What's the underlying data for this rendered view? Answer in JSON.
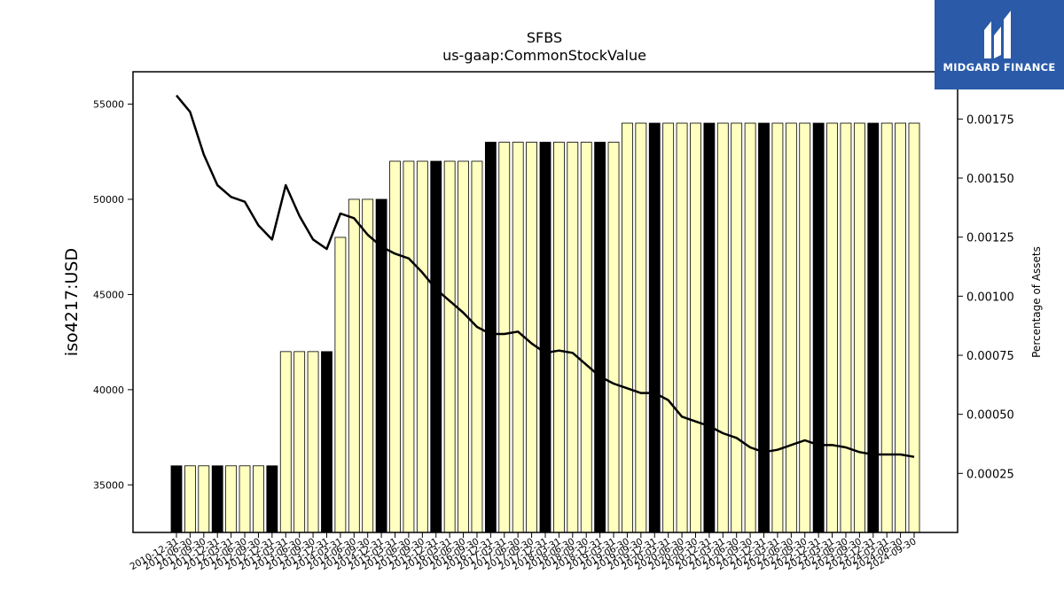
{
  "chart_data": {
    "type": "bar",
    "title": "SFBS",
    "subtitle": "us-gaap:CommonStockValue",
    "ylabel": "iso4217:USD",
    "y2label": "Percentage of Assets",
    "ylim": [
      32500,
      56700
    ],
    "y2lim": [
      0.0,
      0.00195
    ],
    "yticks": [
      35000,
      40000,
      45000,
      50000,
      55000
    ],
    "y2ticks": [
      "0.00025",
      "0.00050",
      "0.00075",
      "0.00100",
      "0.00125",
      "0.00150",
      "0.00175"
    ],
    "categories": [
      "2010-12-31",
      "2011-06-30",
      "2011-09-30",
      "2011-12-31",
      "2012-03-31",
      "2012-06-30",
      "2012-09-30",
      "2012-12-31",
      "2013-03-31",
      "2013-06-30",
      "2013-09-30",
      "2013-12-31",
      "2014-03-31",
      "2014-06-30",
      "2014-09-30",
      "2014-12-31",
      "2015-03-31",
      "2015-06-30",
      "2015-09-30",
      "2015-12-31",
      "2016-03-31",
      "2016-06-30",
      "2016-09-30",
      "2016-12-31",
      "2017-03-31",
      "2017-06-30",
      "2017-09-30",
      "2017-12-31",
      "2018-03-31",
      "2018-06-30",
      "2018-09-30",
      "2018-12-31",
      "2019-03-31",
      "2019-06-30",
      "2019-09-30",
      "2019-12-31",
      "2020-03-31",
      "2020-06-30",
      "2020-09-30",
      "2020-12-31",
      "2021-03-31",
      "2021-06-30",
      "2021-09-30",
      "2021-12-31",
      "2022-03-31",
      "2022-06-30",
      "2022-09-30",
      "2022-12-31",
      "2023-03-31",
      "2023-06-30",
      "2023-09-30",
      "2023-12-31",
      "2024-03-31",
      "2024-06-30",
      "2024-09-30"
    ],
    "values": [
      36000,
      36000,
      36000,
      36000,
      36000,
      36000,
      36000,
      36000,
      42000,
      42000,
      42000,
      42000,
      48000,
      50000,
      50000,
      50000,
      52000,
      52000,
      52000,
      52000,
      52000,
      52000,
      52000,
      53000,
      53000,
      53000,
      53000,
      53000,
      53000,
      53000,
      53000,
      53000,
      53000,
      54000,
      54000,
      54000,
      54000,
      54000,
      54000,
      54000,
      54000,
      54000,
      54000,
      54000,
      54000,
      54000,
      54000,
      54000,
      54000,
      54000,
      54000,
      54000,
      54000,
      54000,
      54000
    ],
    "annual": [
      true,
      false,
      false,
      true,
      false,
      false,
      false,
      true,
      false,
      false,
      false,
      true,
      false,
      false,
      false,
      true,
      false,
      false,
      false,
      true,
      false,
      false,
      false,
      true,
      false,
      false,
      false,
      true,
      false,
      false,
      false,
      true,
      false,
      false,
      false,
      true,
      false,
      false,
      false,
      true,
      false,
      false,
      false,
      true,
      false,
      false,
      false,
      true,
      false,
      false,
      false,
      true,
      false,
      false,
      false
    ],
    "line_series": {
      "name": "Percentage of Assets",
      "values": [
        0.00185,
        0.00178,
        0.0016,
        0.00147,
        0.00142,
        0.0014,
        0.0013,
        0.00124,
        0.00147,
        0.00134,
        0.00124,
        0.0012,
        0.00135,
        0.00133,
        0.00126,
        0.00121,
        0.00118,
        0.00116,
        0.0011,
        0.00103,
        0.00098,
        0.00093,
        0.00087,
        0.00084,
        0.00084,
        0.00085,
        0.0008,
        0.00076,
        0.00077,
        0.00076,
        0.00071,
        0.00066,
        0.00063,
        0.00061,
        0.00059,
        0.00059,
        0.00056,
        0.00049,
        0.00047,
        0.00045,
        0.00042,
        0.0004,
        0.00036,
        0.00034,
        0.00035,
        0.00037,
        0.00039,
        0.00037,
        0.00037,
        0.00036,
        0.00034,
        0.00033,
        0.00033,
        0.00033,
        0.00032
      ]
    },
    "colors": {
      "bar_fill": "#ffffc0",
      "bar_fill_annual": "#000000",
      "bar_edge": "#000000",
      "line": "#000000"
    },
    "grid": false
  },
  "logo": {
    "text": "MIDGARD FINANCE",
    "background": "#2a5aa8",
    "foreground": "#ffffff"
  }
}
